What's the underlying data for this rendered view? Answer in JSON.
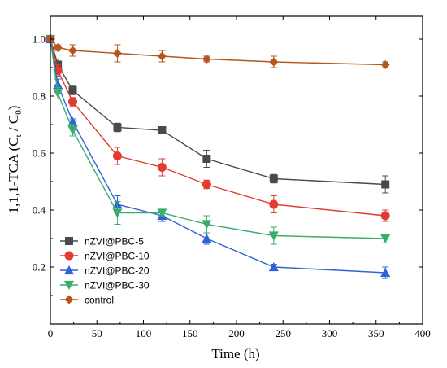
{
  "chart_data": {
    "type": "line",
    "xlabel": "Time (h)",
    "ylabel_parts": {
      "prefix": "1,1,1-TCA (C",
      "sub1": "t",
      "mid": " / C",
      "sub2": "0",
      "suffix": ")"
    },
    "xlim": [
      0,
      400
    ],
    "ylim": [
      0.0,
      1.08
    ],
    "x_ticks": [
      0,
      50,
      100,
      150,
      200,
      250,
      300,
      350,
      400
    ],
    "y_ticks": [
      0.2,
      0.4,
      0.6,
      0.8,
      1.0
    ],
    "y_tick_labels": [
      "0.2",
      "0.4",
      "0.6",
      "0.8",
      "1.0"
    ],
    "grid": false,
    "legend_position": "lower-left",
    "x": [
      0,
      8,
      24,
      72,
      120,
      168,
      240,
      360
    ],
    "series": [
      {
        "name": "nZVI@PBC-5",
        "color": "#4a4a4a",
        "marker": "square",
        "values": [
          1.0,
          0.91,
          0.82,
          0.69,
          0.68,
          0.58,
          0.51,
          0.49
        ],
        "errors": [
          0.01,
          0.02,
          0.015,
          0.015,
          0.01,
          0.03,
          0.015,
          0.03
        ]
      },
      {
        "name": "nZVI@PBC-10",
        "color": "#e23b30",
        "marker": "circle",
        "values": [
          1.0,
          0.89,
          0.78,
          0.59,
          0.55,
          0.49,
          0.42,
          0.38
        ],
        "errors": [
          0.01,
          0.02,
          0.015,
          0.03,
          0.03,
          0.015,
          0.03,
          0.02
        ]
      },
      {
        "name": "nZVI@PBC-20",
        "color": "#2f62d6",
        "marker": "triangle-up",
        "values": [
          1.0,
          0.84,
          0.71,
          0.42,
          0.38,
          0.3,
          0.2,
          0.18
        ],
        "errors": [
          0.01,
          0.02,
          0.01,
          0.03,
          0.02,
          0.02,
          0.01,
          0.02
        ]
      },
      {
        "name": "nZVI@PBC-30",
        "color": "#3aad6a",
        "marker": "triangle-down",
        "values": [
          1.0,
          0.81,
          0.68,
          0.39,
          0.39,
          0.35,
          0.31,
          0.3
        ],
        "errors": [
          0.01,
          0.02,
          0.02,
          0.04,
          0.01,
          0.03,
          0.03,
          0.015
        ]
      },
      {
        "name": "control",
        "color": "#b5561e",
        "marker": "diamond",
        "values": [
          1.0,
          0.97,
          0.96,
          0.95,
          0.94,
          0.93,
          0.92,
          0.91
        ],
        "errors": [
          0.01,
          0.01,
          0.02,
          0.03,
          0.02,
          0.01,
          0.02,
          0.01
        ]
      }
    ]
  }
}
